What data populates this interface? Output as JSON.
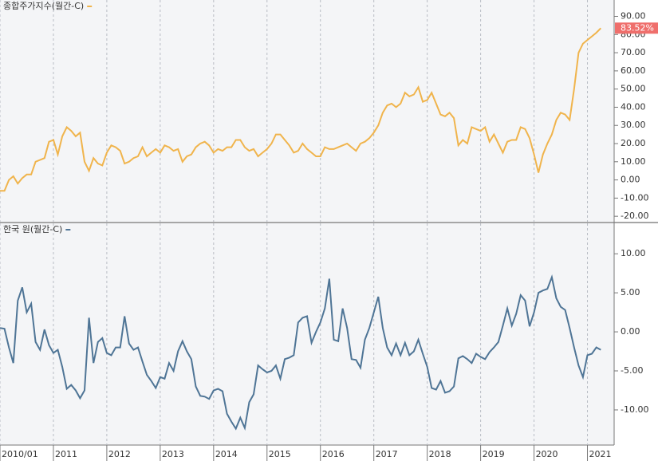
{
  "chart_data": [
    {
      "type": "line",
      "ylim": [
        -23,
        99
      ],
      "yticks": [
        {
          "value": 90,
          "label": "90.00"
        },
        {
          "value": 80,
          "label": "80.00"
        },
        {
          "value": 70,
          "label": "70.00"
        },
        {
          "value": 60,
          "label": "60.00"
        },
        {
          "value": 50,
          "label": "50.00"
        },
        {
          "value": 40,
          "label": "40.00"
        },
        {
          "value": 30,
          "label": "30.00"
        },
        {
          "value": 20,
          "label": "20.00"
        },
        {
          "value": 10,
          "label": "10.00"
        },
        {
          "value": 0,
          "label": "0.00"
        },
        {
          "value": -10,
          "label": "-10.00"
        },
        {
          "value": -20,
          "label": "-20.00"
        }
      ],
      "last_value_label": "83.52%",
      "series": [
        {
          "name": "종합주가지수(월간-C)",
          "color": "#f0b44c",
          "values": [
            -6,
            -6,
            0,
            2,
            -2,
            1,
            3,
            3,
            10,
            11,
            12,
            21,
            22,
            14,
            24,
            29,
            27,
            24,
            26,
            10,
            5,
            12,
            9,
            8,
            15,
            19,
            18,
            16,
            9,
            10,
            12,
            13,
            18,
            13,
            15,
            17,
            15,
            19,
            18,
            16,
            17,
            10,
            13,
            14,
            18,
            20,
            21,
            19,
            15,
            17,
            16,
            18,
            18,
            22,
            22,
            18,
            16,
            17,
            13,
            15,
            17,
            20,
            25,
            25,
            22,
            19,
            15,
            16,
            20,
            17,
            15,
            13,
            13,
            18,
            17,
            17,
            18,
            19,
            20,
            18,
            16,
            20,
            21,
            23,
            26,
            30,
            37,
            41,
            42,
            40,
            42,
            48,
            46,
            47,
            51,
            43,
            44,
            48,
            42,
            36,
            35,
            37,
            34,
            19,
            22,
            20,
            29,
            28,
            27,
            29,
            21,
            25,
            20,
            15,
            21,
            22,
            22,
            29,
            28,
            23,
            14,
            4,
            14,
            20,
            25,
            33,
            37,
            36,
            33,
            50,
            70,
            75,
            77,
            79,
            81,
            83.52
          ]
        }
      ]
    },
    {
      "type": "line",
      "ylim": [
        -14.5,
        13.9
      ],
      "yticks": [
        {
          "value": 10,
          "label": "10.00"
        },
        {
          "value": 5,
          "label": "5.00"
        },
        {
          "value": 0,
          "label": "0.00"
        },
        {
          "value": -5,
          "label": "-5.00"
        },
        {
          "value": -10,
          "label": "-10.00"
        }
      ],
      "xlim": [
        0,
        138
      ],
      "xticks": [
        {
          "value": 0,
          "label": "2010/01"
        },
        {
          "value": 12,
          "label": "2011"
        },
        {
          "value": 24,
          "label": "2012"
        },
        {
          "value": 36,
          "label": "2013"
        },
        {
          "value": 48,
          "label": "2014"
        },
        {
          "value": 60,
          "label": "2015"
        },
        {
          "value": 72,
          "label": "2016"
        },
        {
          "value": 84,
          "label": "2017"
        },
        {
          "value": 96,
          "label": "2018"
        },
        {
          "value": 108,
          "label": "2019"
        },
        {
          "value": 120,
          "label": "2020"
        },
        {
          "value": 132,
          "label": "2021"
        }
      ],
      "series": [
        {
          "name": "한국 원(월간-C)",
          "color": "#4f7596",
          "values": [
            0.5,
            0.4,
            -2,
            -4,
            4,
            5.7,
            2.5,
            3.6,
            -1.3,
            -2.3,
            0.3,
            -1.7,
            -2.7,
            -2.3,
            -4.5,
            -7.3,
            -6.8,
            -7.5,
            -8.5,
            -7.5,
            1.8,
            -4,
            -1.3,
            -0.8,
            -2.7,
            -3,
            -2,
            -2,
            2,
            -1.5,
            -2.3,
            -2,
            -3.8,
            -5.5,
            -6.3,
            -7.2,
            -5.8,
            -6,
            -4,
            -5,
            -2.5,
            -1.2,
            -2.5,
            -3.5,
            -7,
            -8.2,
            -8.3,
            -8.6,
            -7.5,
            -7.3,
            -7.6,
            -10.5,
            -11.5,
            -12.4,
            -11,
            -12.3,
            -9,
            -8,
            -4.3,
            -4.8,
            -5.2,
            -5,
            -4.3,
            -6,
            -3.5,
            -3.3,
            -3,
            1.2,
            1.8,
            2,
            -1.4,
            0,
            1.2,
            3,
            6.8,
            -1,
            -1.2,
            3,
            0.5,
            -3.5,
            -3.6,
            -4.6,
            -1,
            0.5,
            2.5,
            4.5,
            0.5,
            -2,
            -3,
            -1.5,
            -3,
            -1.4,
            -3,
            -2.5,
            -1,
            -2.8,
            -4.5,
            -7.2,
            -7.4,
            -6.3,
            -7.8,
            -7.6,
            -7,
            -3.4,
            -3.1,
            -3.5,
            -4,
            -2.8,
            -3.2,
            -3.5,
            -2.6,
            -2,
            -1.3,
            0.8,
            3,
            0.8,
            2.3,
            4.7,
            4,
            0.7,
            2.5,
            5,
            5.3,
            5.5,
            7,
            4.3,
            3.2,
            2.8,
            0.5,
            -2,
            -4.3,
            -5.8,
            -3,
            -2.8,
            -2,
            -2.3
          ]
        }
      ]
    }
  ]
}
